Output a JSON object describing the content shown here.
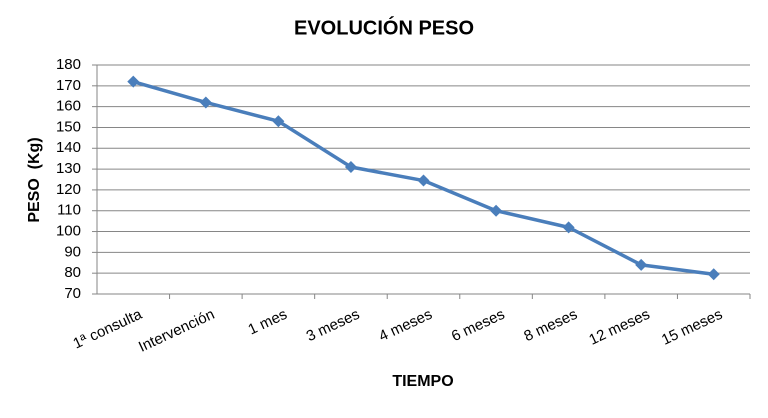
{
  "chart_data": {
    "type": "line",
    "title": "EVOLUCIÓN PESO",
    "x_label": "TIEMPO",
    "y_label": "PESO  (Kg)",
    "categories": [
      "1ª consulta",
      "Intervención",
      "1 mes",
      "3 meses",
      "4 meses",
      "6 meses",
      "8 meses",
      "12 meses",
      "15 meses"
    ],
    "values": [
      172,
      162,
      153,
      131,
      124.5,
      110,
      102,
      84,
      79.5
    ],
    "color": "#4a7ebb",
    "ylim": [
      70,
      180
    ],
    "yticks": [
      70,
      80,
      90,
      100,
      110,
      120,
      130,
      140,
      150,
      160,
      170,
      180
    ],
    "grid": true
  }
}
